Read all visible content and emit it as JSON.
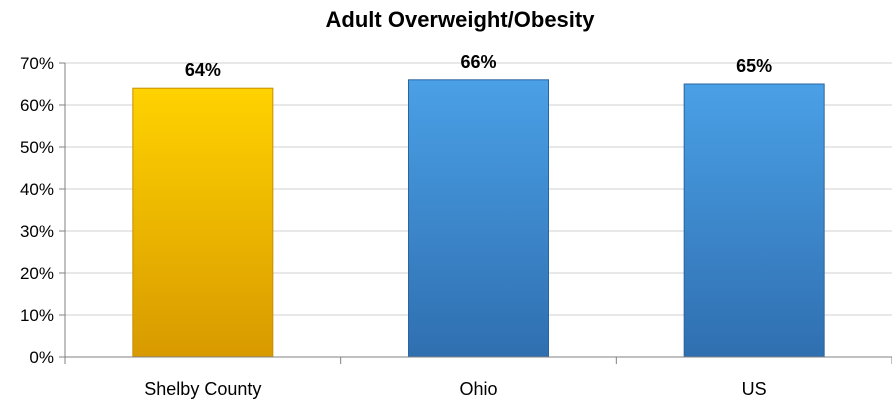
{
  "chart_data": {
    "type": "bar",
    "title": "Adult Overweight/Obesity",
    "xlabel": "",
    "ylabel": "",
    "categories": [
      "Shelby County",
      "Ohio",
      "US"
    ],
    "values": [
      64,
      66,
      65
    ],
    "data_labels": [
      "64%",
      "66%",
      "65%"
    ],
    "ylim": [
      0,
      70
    ],
    "y_ticks": [
      0,
      10,
      20,
      30,
      40,
      50,
      60,
      70
    ],
    "y_tick_labels": [
      "0%",
      "10%",
      "20%",
      "30%",
      "40%",
      "50%",
      "60%",
      "70%"
    ],
    "grid": true,
    "legend": "none",
    "colors": {
      "highlight_top": "#ffd200",
      "highlight_bottom": "#d89a00",
      "highlight_edge": "#c98d00",
      "default_top": "#4aa0e6",
      "default_bottom": "#2f6fb0",
      "default_edge": "#2b64a0"
    },
    "bar_color_keys": [
      "highlight",
      "default",
      "default"
    ]
  }
}
